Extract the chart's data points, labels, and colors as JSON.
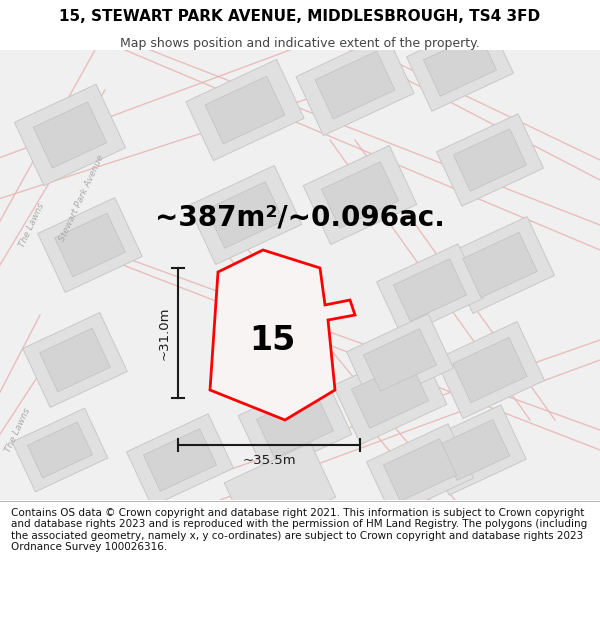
{
  "title_line1": "15, STEWART PARK AVENUE, MIDDLESBROUGH, TS4 3FD",
  "title_line2": "Map shows position and indicative extent of the property.",
  "area_text": "~387m²/~0.096ac.",
  "label_number": "15",
  "dim_vertical": "~31.0m",
  "dim_horizontal": "~35.5m",
  "footer_text": "Contains OS data © Crown copyright and database right 2021. This information is subject to Crown copyright and database rights 2023 and is reproduced with the permission of HM Land Registry. The polygons (including the associated geometry, namely x, y co-ordinates) are subject to Crown copyright and database rights 2023 Ordnance Survey 100026316.",
  "bg_white": "#ffffff",
  "map_bg": "#f0f0f0",
  "block_fill": "#e0e0e0",
  "block_edge": "#c8c8c8",
  "road_fill": "#f8f8f8",
  "road_edge_color": "#e8b8b8",
  "property_edge": "#ff0000",
  "property_fill": "#f8f4f4",
  "dim_color": "#1a1a1a",
  "street_label_color": "#aaaaaa",
  "title_fontsize": 11,
  "subtitle_fontsize": 9,
  "area_fontsize": 20,
  "label_fontsize": 24,
  "dim_fontsize": 9.5,
  "footer_fontsize": 7.5
}
